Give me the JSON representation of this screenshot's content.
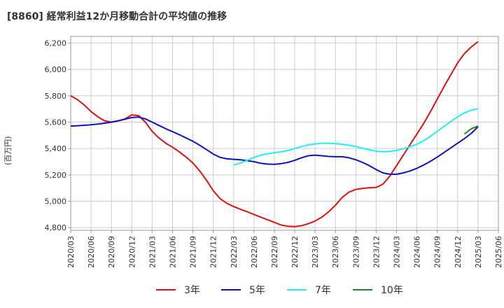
{
  "title": "[8860]  経常利益12か月移動合計の平均値の推移",
  "chart_data": {
    "type": "line",
    "title": "[8860]  経常利益12か月移動合計の平均値の推移",
    "xlabel": "",
    "ylabel": "(百万円)",
    "ylim": [
      4780,
      6250
    ],
    "yticks": [
      4800,
      5000,
      5200,
      5400,
      5600,
      5800,
      6000,
      6200
    ],
    "ytick_labels": [
      "4,800",
      "5,000",
      "5,200",
      "5,400",
      "5,600",
      "5,800",
      "6,000",
      "6,200"
    ],
    "xlim": [
      "2020/03",
      "2025/06"
    ],
    "xtick_labels": [
      "2020/03",
      "2020/06",
      "2020/09",
      "2020/12",
      "2021/03",
      "2021/06",
      "2021/09",
      "2021/12",
      "2022/03",
      "2022/06",
      "2022/09",
      "2022/12",
      "2023/03",
      "2023/06",
      "2023/09",
      "2023/12",
      "2024/03",
      "2024/06",
      "2024/09",
      "2024/12",
      "2025/03",
      "2025/06"
    ],
    "grid": true,
    "legend_position": "bottom",
    "series": [
      {
        "name": "3年",
        "color": "#dd1111",
        "x": [
          "2020/03",
          "2020/04",
          "2020/05",
          "2020/06",
          "2020/07",
          "2020/08",
          "2020/09",
          "2020/10",
          "2020/11",
          "2020/12",
          "2021/01",
          "2021/02",
          "2021/03",
          "2021/04",
          "2021/05",
          "2021/06",
          "2021/07",
          "2021/08",
          "2021/09",
          "2021/10",
          "2021/11",
          "2021/12",
          "2022/01",
          "2022/02",
          "2022/03",
          "2022/04",
          "2022/05",
          "2022/06",
          "2022/07",
          "2022/08",
          "2022/09",
          "2022/10",
          "2022/11",
          "2022/12",
          "2023/01",
          "2023/02",
          "2023/03",
          "2023/04",
          "2023/05",
          "2023/06",
          "2023/07",
          "2023/08",
          "2023/09",
          "2023/10",
          "2023/11",
          "2023/12",
          "2024/01",
          "2024/02",
          "2024/03",
          "2024/04",
          "2024/05",
          "2024/06",
          "2024/07",
          "2024/08",
          "2024/09",
          "2024/10",
          "2024/11",
          "2024/12",
          "2025/01",
          "2025/02",
          "2025/03"
        ],
        "values": [
          5800,
          5770,
          5730,
          5680,
          5640,
          5610,
          5600,
          5610,
          5625,
          5655,
          5650,
          5600,
          5530,
          5480,
          5440,
          5410,
          5375,
          5335,
          5290,
          5230,
          5160,
          5080,
          5020,
          4985,
          4960,
          4940,
          4920,
          4900,
          4880,
          4860,
          4840,
          4820,
          4810,
          4808,
          4815,
          4830,
          4850,
          4880,
          4920,
          4970,
          5030,
          5070,
          5090,
          5098,
          5102,
          5105,
          5130,
          5190,
          5270,
          5350,
          5430,
          5510,
          5590,
          5680,
          5775,
          5870,
          5960,
          6050,
          6120,
          6170,
          6210
        ]
      },
      {
        "name": "5年",
        "color": "#1111bb",
        "x": [
          "2020/03",
          "2020/04",
          "2020/05",
          "2020/06",
          "2020/07",
          "2020/08",
          "2020/09",
          "2020/10",
          "2020/11",
          "2020/12",
          "2021/01",
          "2021/02",
          "2021/03",
          "2021/04",
          "2021/05",
          "2021/06",
          "2021/07",
          "2021/08",
          "2021/09",
          "2021/10",
          "2021/11",
          "2021/12",
          "2022/01",
          "2022/02",
          "2022/03",
          "2022/04",
          "2022/05",
          "2022/06",
          "2022/07",
          "2022/08",
          "2022/09",
          "2022/10",
          "2022/11",
          "2022/12",
          "2023/01",
          "2023/02",
          "2023/03",
          "2023/04",
          "2023/05",
          "2023/06",
          "2023/07",
          "2023/08",
          "2023/09",
          "2023/10",
          "2023/11",
          "2023/12",
          "2024/01",
          "2024/02",
          "2024/03",
          "2024/04",
          "2024/05",
          "2024/06",
          "2024/07",
          "2024/08",
          "2024/09",
          "2024/10",
          "2024/11",
          "2024/12",
          "2025/01",
          "2025/02",
          "2025/03"
        ],
        "values": [
          5570,
          5573,
          5576,
          5580,
          5585,
          5592,
          5600,
          5610,
          5622,
          5635,
          5638,
          5625,
          5600,
          5575,
          5550,
          5528,
          5505,
          5480,
          5455,
          5425,
          5392,
          5358,
          5333,
          5322,
          5318,
          5315,
          5308,
          5300,
          5288,
          5282,
          5280,
          5285,
          5295,
          5310,
          5330,
          5345,
          5350,
          5345,
          5340,
          5338,
          5338,
          5330,
          5315,
          5295,
          5270,
          5240,
          5215,
          5205,
          5205,
          5215,
          5230,
          5250,
          5275,
          5303,
          5335,
          5370,
          5405,
          5440,
          5475,
          5515,
          5565
        ]
      },
      {
        "name": "7年",
        "color": "#22eeee",
        "x": [
          "2022/03",
          "2022/04",
          "2022/05",
          "2022/06",
          "2022/07",
          "2022/08",
          "2022/09",
          "2022/10",
          "2022/11",
          "2022/12",
          "2023/01",
          "2023/02",
          "2023/03",
          "2023/04",
          "2023/05",
          "2023/06",
          "2023/07",
          "2023/08",
          "2023/09",
          "2023/10",
          "2023/11",
          "2023/12",
          "2024/01",
          "2024/02",
          "2024/03",
          "2024/04",
          "2024/05",
          "2024/06",
          "2024/07",
          "2024/08",
          "2024/09",
          "2024/10",
          "2024/11",
          "2024/12",
          "2025/01",
          "2025/02",
          "2025/03"
        ],
        "values": [
          5275,
          5290,
          5310,
          5332,
          5350,
          5360,
          5368,
          5375,
          5385,
          5400,
          5415,
          5427,
          5435,
          5440,
          5440,
          5437,
          5432,
          5425,
          5415,
          5402,
          5390,
          5380,
          5376,
          5378,
          5385,
          5398,
          5413,
          5432,
          5460,
          5493,
          5530,
          5568,
          5605,
          5640,
          5670,
          5690,
          5702
        ]
      },
      {
        "name": "10年",
        "color": "#228822",
        "x": [
          "2025/01",
          "2025/02",
          "2025/03"
        ],
        "values": [
          5510,
          5550,
          5570
        ]
      }
    ]
  }
}
